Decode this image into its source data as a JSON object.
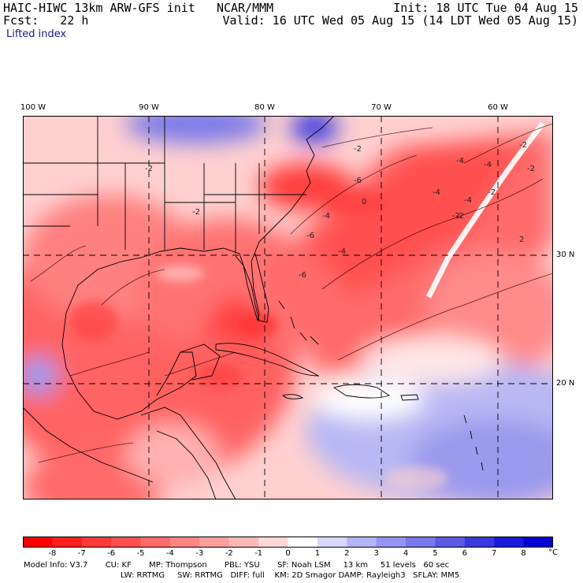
{
  "header": {
    "model": "HAIC-HIWC 13km ARW-GFS init",
    "center": "NCAR/MMM",
    "fcst_label": "Fcst:",
    "fcst_value": "22 h",
    "init": "Init: 18 UTC Tue 04 Aug 15",
    "valid": "Valid: 16 UTC Wed 05 Aug 15 (14 LDT Wed 05 Aug 15)",
    "field": "Lifted index"
  },
  "map": {
    "longitude_labels": [
      "100 W",
      "90 W",
      "80 W",
      "70 W",
      "60 W"
    ],
    "latitude_labels": [
      "30 N",
      "20 N"
    ],
    "contour_labels": [
      "-2",
      "-4",
      "-6",
      "-4",
      "-2",
      "-2",
      "-4",
      "-6",
      "-4",
      "-2",
      "-2",
      "-4",
      "-6",
      "0",
      "-2",
      "-2",
      "-4",
      "2",
      "-2"
    ],
    "colors": {
      "strong_negative": "#ff2020",
      "negative": "#ff8080",
      "neutral": "#ffffff",
      "positive": "#8c8cf0",
      "strong_positive": "#0000e6"
    }
  },
  "colorbar": {
    "values": [
      "-8",
      "-7",
      "-6",
      "-5",
      "-4",
      "-3",
      "-2",
      "-1",
      "0",
      "1",
      "2",
      "3",
      "4",
      "5",
      "6",
      "7",
      "8"
    ],
    "unit": "°C",
    "colors": [
      "#ff0000",
      "#ff1e1e",
      "#ff3838",
      "#ff5050",
      "#ff6a6a",
      "#ff8484",
      "#ff9e9e",
      "#ffb8b8",
      "#ffd8d8",
      "#ffffff",
      "#d8d8ff",
      "#b4b4f8",
      "#9494f2",
      "#7878ec",
      "#5a5ae6",
      "#3a3ae0",
      "#1a1ada",
      "#0000d2"
    ]
  },
  "footer": {
    "line1": [
      "Model Info: V3.7",
      "CU: KF",
      "MP: Thompson",
      "PBL: YSU",
      "SF: Noah LSM",
      "13 km",
      "51 levels",
      "60 sec"
    ],
    "line2": [
      "LW: RRTMG",
      "SW: RRTMG",
      "DIFF: full",
      "KM: 2D Smagor",
      "DAMP: Rayleigh3",
      "SFLAY: MM5"
    ]
  }
}
